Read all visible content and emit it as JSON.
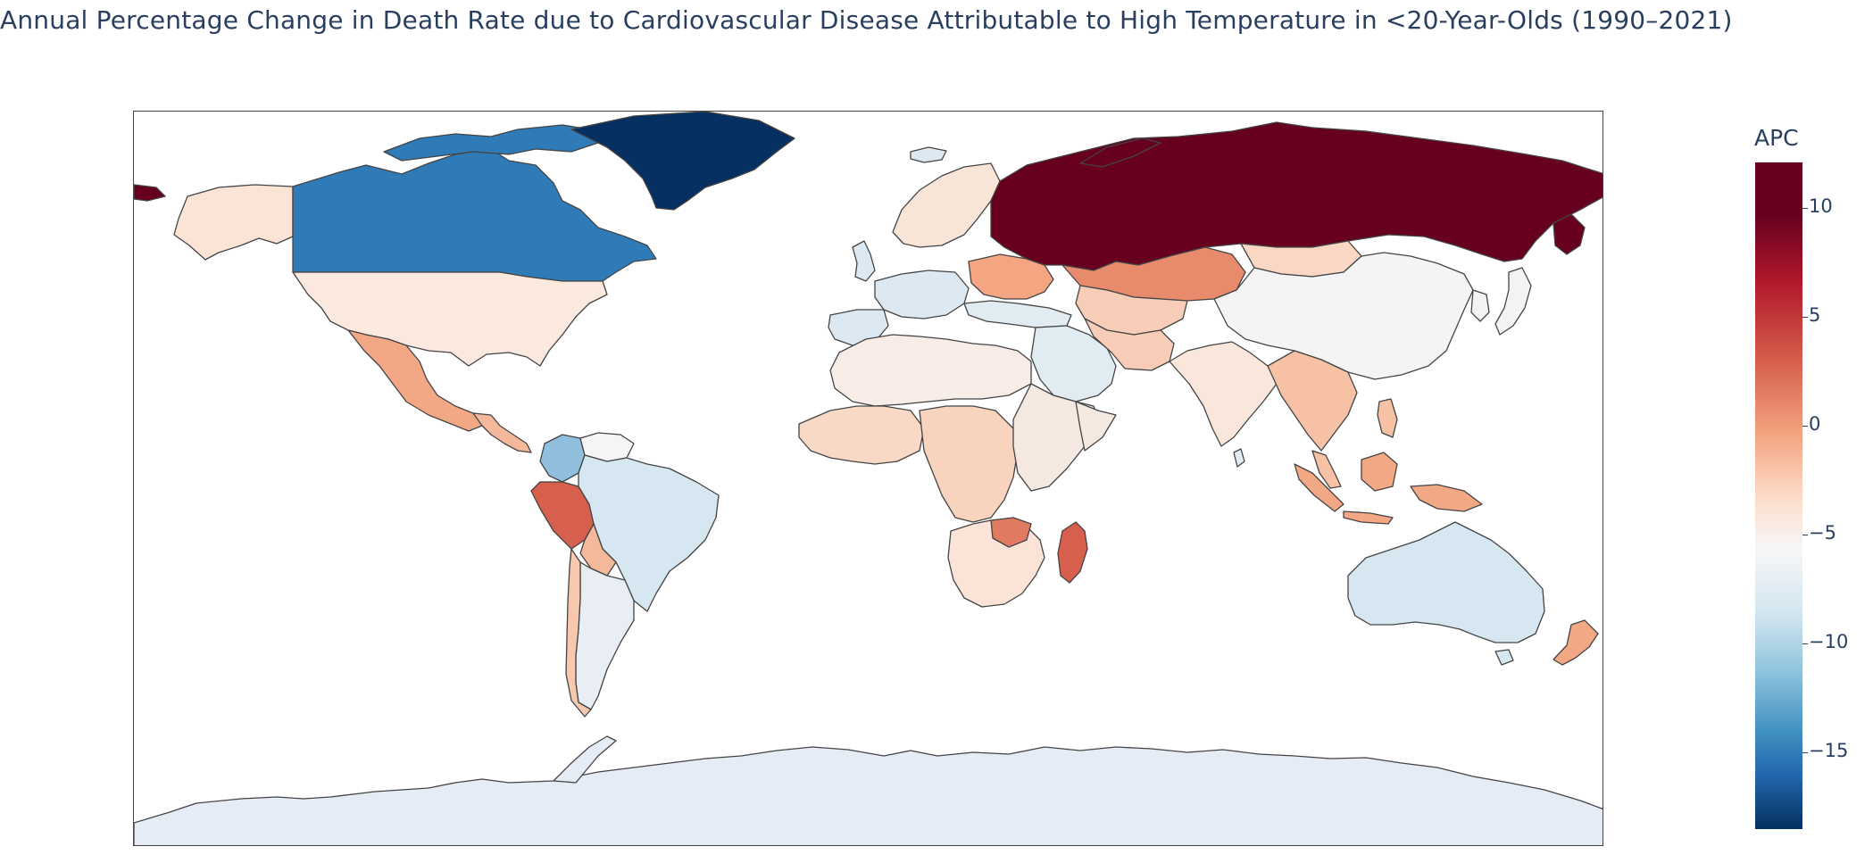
{
  "title": "Annual Percentage Change in Death Rate due to Cardiovascular Disease Attributable to High Temperature in <20-Year-Olds (1990–2021)",
  "colorbar": {
    "title": "APC",
    "ticks": [
      "10",
      "5",
      "0",
      "−5",
      "−10",
      "−15"
    ],
    "tick_values": [
      10,
      5,
      0,
      -5,
      -10,
      -15
    ],
    "range": [
      -18.6,
      12.1
    ],
    "colorscale": [
      "#053061",
      "#2166ac",
      "#4393c3",
      "#92c5de",
      "#d1e5f0",
      "#f7f7f7",
      "#fddbc7",
      "#f4a582",
      "#d6604d",
      "#b2182b",
      "#67001f"
    ]
  },
  "map": {
    "projection": "equirectangular",
    "land_color": "#e5ecf6",
    "border_color": "#444444",
    "regions": [
      {
        "name": "Russia",
        "color": "#67001f"
      },
      {
        "name": "Greenland",
        "color": "#053061"
      },
      {
        "name": "Canada",
        "color": "#2f7bb8"
      },
      {
        "name": "Alaska",
        "color": "#fbe3d6"
      },
      {
        "name": "United States",
        "color": "#fbe8de"
      },
      {
        "name": "Mexico",
        "color": "#f2a884"
      },
      {
        "name": "Central America",
        "color": "#f4b89b"
      },
      {
        "name": "Colombia",
        "color": "#8fbfdc"
      },
      {
        "name": "Venezuela",
        "color": "#f5f5f5"
      },
      {
        "name": "Peru",
        "color": "#d6604d"
      },
      {
        "name": "Brazil",
        "color": "#d6e7f1"
      },
      {
        "name": "Bolivia",
        "color": "#f4b89b"
      },
      {
        "name": "Argentina",
        "color": "#e8eef3"
      },
      {
        "name": "Chile",
        "color": "#f6c8ae"
      },
      {
        "name": "Western Europe",
        "color": "#dde9f2"
      },
      {
        "name": "Scandinavia",
        "color": "#f9e4d8"
      },
      {
        "name": "Eastern Europe",
        "color": "#f4a582"
      },
      {
        "name": "North Africa",
        "color": "#f7ece6"
      },
      {
        "name": "West Africa",
        "color": "#f9d9c5"
      },
      {
        "name": "Central Africa",
        "color": "#f8d3bd"
      },
      {
        "name": "East Africa",
        "color": "#f4e8e1"
      },
      {
        "name": "Southern Africa",
        "color": "#fbe4d7"
      },
      {
        "name": "Zimbabwe",
        "color": "#e07b62"
      },
      {
        "name": "Madagascar",
        "color": "#d6604d"
      },
      {
        "name": "Middle East",
        "color": "#e1ebf2"
      },
      {
        "name": "Kazakhstan",
        "color": "#e88b6d"
      },
      {
        "name": "Central Asia",
        "color": "#f7cdb7"
      },
      {
        "name": "Mongolia",
        "color": "#f9d7c4"
      },
      {
        "name": "China",
        "color": "#f4f4f4"
      },
      {
        "name": "India",
        "color": "#fae7dc"
      },
      {
        "name": "Southeast Asia",
        "color": "#f6c1a5"
      },
      {
        "name": "Indonesia",
        "color": "#f2a884"
      },
      {
        "name": "Australia",
        "color": "#d7e7f1"
      },
      {
        "name": "New Zealand",
        "color": "#f2a884"
      },
      {
        "name": "Japan",
        "color": "#f3f3f3"
      },
      {
        "name": "Antarctica",
        "color": "#e5ecf6"
      }
    ]
  }
}
